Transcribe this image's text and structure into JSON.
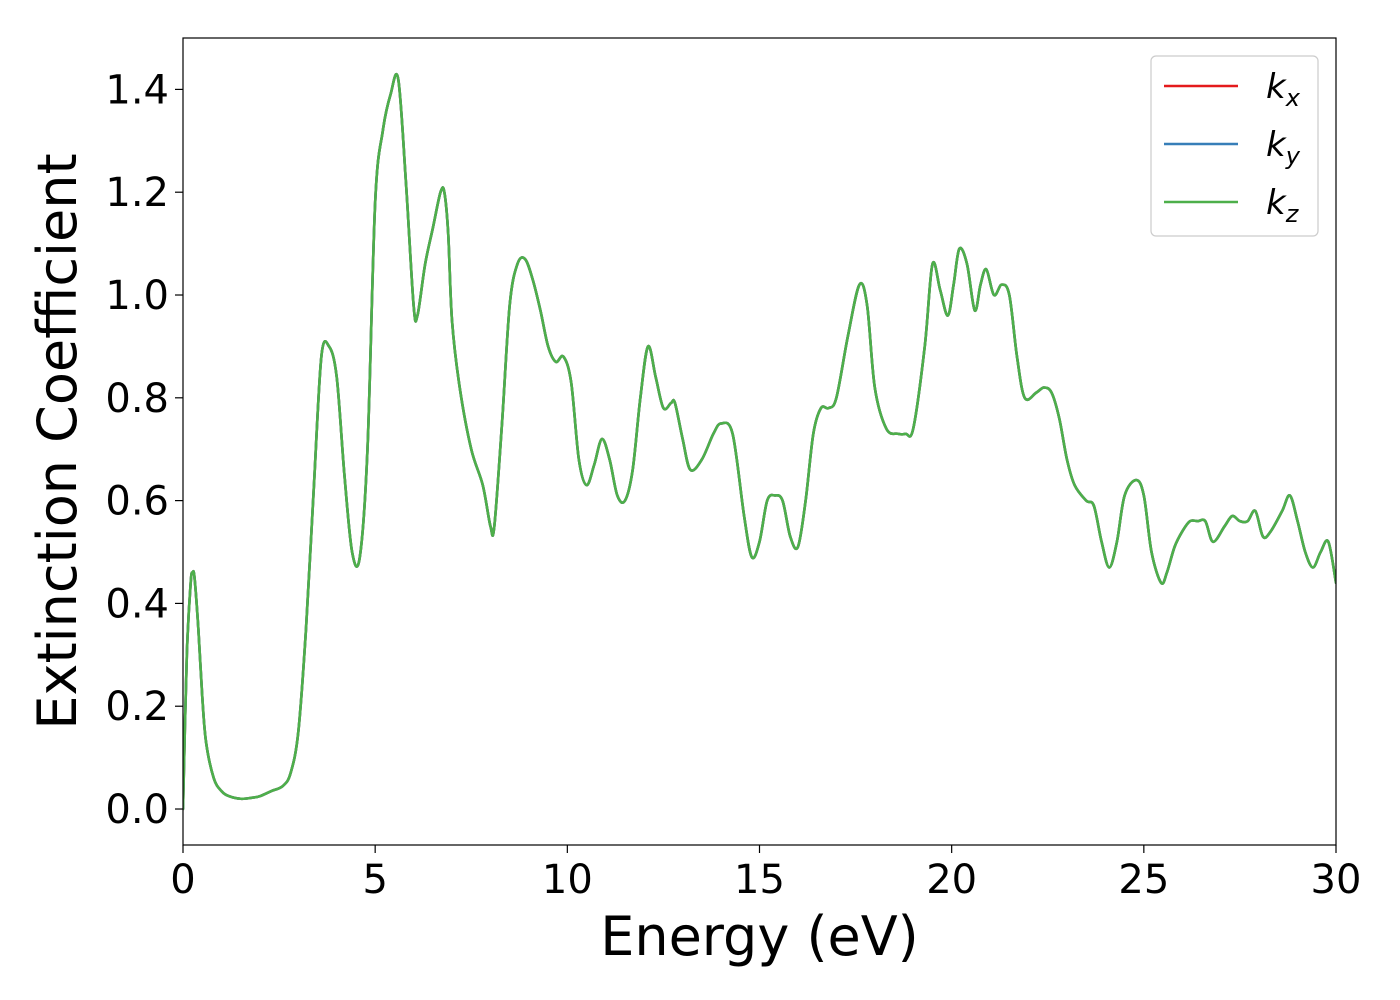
{
  "chart_data": {
    "type": "line",
    "xlabel": "Energy (eV)",
    "ylabel": "Extinction Coefficient",
    "xlim": [
      0,
      30
    ],
    "ylim": [
      -0.07,
      1.5
    ],
    "xticks": [
      0,
      5,
      10,
      15,
      20,
      25,
      30
    ],
    "yticks": [
      0.0,
      0.2,
      0.4,
      0.6,
      0.8,
      1.0,
      1.2,
      1.4
    ],
    "ytick_labels": [
      "0.0",
      "0.2",
      "0.4",
      "0.6",
      "0.8",
      "1.0",
      "1.2",
      "1.4"
    ],
    "grid": false,
    "legend_position": "top-right",
    "x": [
      0.0,
      0.1,
      0.2,
      0.25,
      0.3,
      0.4,
      0.5,
      0.6,
      0.8,
      1.0,
      1.2,
      1.5,
      1.8,
      2.0,
      2.3,
      2.6,
      2.8,
      3.0,
      3.2,
      3.4,
      3.6,
      3.8,
      4.0,
      4.2,
      4.4,
      4.6,
      4.8,
      5.0,
      5.2,
      5.4,
      5.6,
      5.8,
      6.0,
      6.1,
      6.3,
      6.5,
      6.7,
      6.8,
      6.9,
      7.0,
      7.2,
      7.5,
      7.8,
      8.0,
      8.1,
      8.3,
      8.5,
      8.7,
      8.9,
      9.1,
      9.3,
      9.5,
      9.7,
      9.9,
      10.1,
      10.3,
      10.5,
      10.7,
      10.9,
      11.1,
      11.3,
      11.5,
      11.7,
      11.9,
      12.1,
      12.3,
      12.5,
      12.7,
      12.8,
      13.0,
      13.2,
      13.5,
      13.8,
      14.0,
      14.3,
      14.6,
      14.8,
      15.0,
      15.2,
      15.4,
      15.6,
      15.8,
      16.0,
      16.2,
      16.4,
      16.6,
      16.8,
      17.0,
      17.3,
      17.6,
      17.8,
      18.0,
      18.3,
      18.6,
      18.8,
      19.0,
      19.3,
      19.5,
      19.7,
      19.9,
      20.05,
      20.2,
      20.4,
      20.6,
      20.75,
      20.9,
      21.1,
      21.3,
      21.5,
      21.7,
      21.9,
      22.2,
      22.4,
      22.6,
      22.8,
      23.0,
      23.2,
      23.5,
      23.7,
      23.9,
      24.1,
      24.3,
      24.5,
      24.8,
      25.0,
      25.2,
      25.45,
      25.6,
      25.8,
      26.0,
      26.2,
      26.4,
      26.6,
      26.8,
      27.1,
      27.3,
      27.5,
      27.7,
      27.9,
      28.1,
      28.3,
      28.6,
      28.8,
      29.0,
      29.2,
      29.4,
      29.6,
      29.8,
      30.0
    ],
    "series": [
      {
        "name": "k_x",
        "color": "#e41a1c",
        "y": [
          0.0,
          0.3,
          0.44,
          0.46,
          0.45,
          0.35,
          0.22,
          0.13,
          0.06,
          0.035,
          0.025,
          0.02,
          0.022,
          0.025,
          0.035,
          0.045,
          0.07,
          0.15,
          0.35,
          0.62,
          0.88,
          0.9,
          0.84,
          0.65,
          0.5,
          0.49,
          0.7,
          1.18,
          1.32,
          1.39,
          1.42,
          1.22,
          0.98,
          0.96,
          1.06,
          1.13,
          1.2,
          1.2,
          1.12,
          0.95,
          0.82,
          0.7,
          0.63,
          0.55,
          0.55,
          0.75,
          0.98,
          1.06,
          1.07,
          1.03,
          0.97,
          0.9,
          0.87,
          0.88,
          0.83,
          0.68,
          0.63,
          0.67,
          0.72,
          0.68,
          0.61,
          0.6,
          0.66,
          0.8,
          0.9,
          0.84,
          0.78,
          0.79,
          0.79,
          0.72,
          0.66,
          0.68,
          0.73,
          0.75,
          0.73,
          0.57,
          0.49,
          0.52,
          0.6,
          0.61,
          0.6,
          0.53,
          0.51,
          0.6,
          0.73,
          0.78,
          0.78,
          0.8,
          0.92,
          1.02,
          0.98,
          0.82,
          0.74,
          0.73,
          0.73,
          0.74,
          0.9,
          1.06,
          1.01,
          0.96,
          1.02,
          1.09,
          1.06,
          0.97,
          1.02,
          1.05,
          1.0,
          1.02,
          1.0,
          0.88,
          0.8,
          0.81,
          0.82,
          0.81,
          0.76,
          0.68,
          0.63,
          0.6,
          0.59,
          0.52,
          0.47,
          0.52,
          0.61,
          0.64,
          0.61,
          0.5,
          0.44,
          0.46,
          0.51,
          0.54,
          0.56,
          0.56,
          0.56,
          0.52,
          0.55,
          0.57,
          0.56,
          0.56,
          0.58,
          0.53,
          0.54,
          0.58,
          0.61,
          0.56,
          0.5,
          0.47,
          0.5,
          0.52,
          0.44
        ]
      },
      {
        "name": "k_y",
        "color": "#377eb8",
        "y": [
          0.0,
          0.3,
          0.44,
          0.46,
          0.45,
          0.35,
          0.22,
          0.13,
          0.06,
          0.035,
          0.025,
          0.02,
          0.022,
          0.025,
          0.035,
          0.045,
          0.07,
          0.15,
          0.35,
          0.62,
          0.88,
          0.9,
          0.84,
          0.65,
          0.5,
          0.49,
          0.7,
          1.18,
          1.32,
          1.39,
          1.42,
          1.22,
          0.98,
          0.96,
          1.06,
          1.13,
          1.2,
          1.2,
          1.12,
          0.95,
          0.82,
          0.7,
          0.63,
          0.55,
          0.55,
          0.75,
          0.98,
          1.06,
          1.07,
          1.03,
          0.97,
          0.9,
          0.87,
          0.88,
          0.83,
          0.68,
          0.63,
          0.67,
          0.72,
          0.68,
          0.61,
          0.6,
          0.66,
          0.8,
          0.9,
          0.84,
          0.78,
          0.79,
          0.79,
          0.72,
          0.66,
          0.68,
          0.73,
          0.75,
          0.73,
          0.57,
          0.49,
          0.52,
          0.6,
          0.61,
          0.6,
          0.53,
          0.51,
          0.6,
          0.73,
          0.78,
          0.78,
          0.8,
          0.92,
          1.02,
          0.98,
          0.82,
          0.74,
          0.73,
          0.73,
          0.74,
          0.9,
          1.06,
          1.01,
          0.96,
          1.02,
          1.09,
          1.06,
          0.97,
          1.02,
          1.05,
          1.0,
          1.02,
          1.0,
          0.88,
          0.8,
          0.81,
          0.82,
          0.81,
          0.76,
          0.68,
          0.63,
          0.6,
          0.59,
          0.52,
          0.47,
          0.52,
          0.61,
          0.64,
          0.61,
          0.5,
          0.44,
          0.46,
          0.51,
          0.54,
          0.56,
          0.56,
          0.56,
          0.52,
          0.55,
          0.57,
          0.56,
          0.56,
          0.58,
          0.53,
          0.54,
          0.58,
          0.61,
          0.56,
          0.5,
          0.47,
          0.5,
          0.52,
          0.44
        ]
      },
      {
        "name": "k_z",
        "color": "#4daf4a",
        "y": [
          0.0,
          0.3,
          0.44,
          0.46,
          0.45,
          0.35,
          0.22,
          0.13,
          0.06,
          0.035,
          0.025,
          0.02,
          0.022,
          0.025,
          0.035,
          0.045,
          0.07,
          0.15,
          0.35,
          0.62,
          0.88,
          0.9,
          0.84,
          0.65,
          0.5,
          0.49,
          0.7,
          1.18,
          1.32,
          1.39,
          1.42,
          1.22,
          0.98,
          0.96,
          1.06,
          1.13,
          1.2,
          1.2,
          1.12,
          0.95,
          0.82,
          0.7,
          0.63,
          0.55,
          0.55,
          0.75,
          0.98,
          1.06,
          1.07,
          1.03,
          0.97,
          0.9,
          0.87,
          0.88,
          0.83,
          0.68,
          0.63,
          0.67,
          0.72,
          0.68,
          0.61,
          0.6,
          0.66,
          0.8,
          0.9,
          0.84,
          0.78,
          0.79,
          0.79,
          0.72,
          0.66,
          0.68,
          0.73,
          0.75,
          0.73,
          0.57,
          0.49,
          0.52,
          0.6,
          0.61,
          0.6,
          0.53,
          0.51,
          0.6,
          0.73,
          0.78,
          0.78,
          0.8,
          0.92,
          1.02,
          0.98,
          0.82,
          0.74,
          0.73,
          0.73,
          0.74,
          0.9,
          1.06,
          1.01,
          0.96,
          1.02,
          1.09,
          1.06,
          0.97,
          1.02,
          1.05,
          1.0,
          1.02,
          1.0,
          0.88,
          0.8,
          0.81,
          0.82,
          0.81,
          0.76,
          0.68,
          0.63,
          0.6,
          0.59,
          0.52,
          0.47,
          0.52,
          0.61,
          0.64,
          0.61,
          0.5,
          0.44,
          0.46,
          0.51,
          0.54,
          0.56,
          0.56,
          0.56,
          0.52,
          0.55,
          0.57,
          0.56,
          0.56,
          0.58,
          0.53,
          0.54,
          0.58,
          0.61,
          0.56,
          0.5,
          0.47,
          0.5,
          0.52,
          0.44
        ]
      }
    ],
    "legend": [
      {
        "base": "k",
        "sub": "x",
        "color": "#e41a1c"
      },
      {
        "base": "k",
        "sub": "y",
        "color": "#377eb8"
      },
      {
        "base": "k",
        "sub": "z",
        "color": "#4daf4a"
      }
    ]
  }
}
